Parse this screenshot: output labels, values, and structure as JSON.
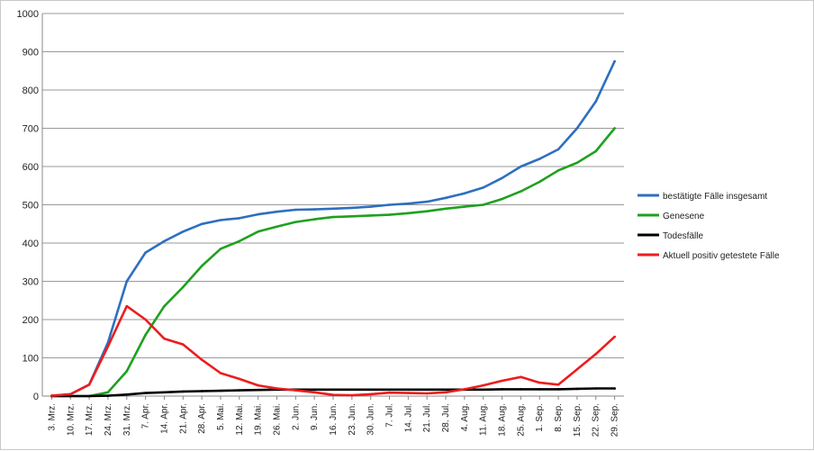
{
  "chart_data": {
    "type": "line",
    "title": "",
    "xlabel": "",
    "ylabel": "",
    "ylim": [
      0,
      1000
    ],
    "yticks": [
      0,
      100,
      200,
      300,
      400,
      500,
      600,
      700,
      800,
      900,
      1000
    ],
    "grid": "horizontal",
    "legend_position": "right",
    "x_tick_labels": [
      "3. Mrz.",
      "10. Mrz.",
      "17. Mrz.",
      "24. Mrz.",
      "31. Mrz.",
      "7. Apr.",
      "14. Apr.",
      "21. Apr.",
      "28. Apr.",
      "5. Mai.",
      "12. Mai.",
      "19. Mai.",
      "26. Mai.",
      "2. Jun.",
      "9. Jun.",
      "16. Jun.",
      "23. Jun.",
      "30. Jun.",
      "7. Jul.",
      "14. Jul.",
      "21. Jul.",
      "28. Jul.",
      "4. Aug.",
      "11. Aug.",
      "18. Aug.",
      "25. Aug.",
      "1. Sep.",
      "8. Sep.",
      "15. Sep.",
      "22. Sep.",
      "29. Sep."
    ],
    "series": [
      {
        "name": "bestätigte Fälle insgesamt",
        "color": "#2e6fc0",
        "points": [
          [
            "3. Mrz.",
            1
          ],
          [
            "10. Mrz.",
            5
          ],
          [
            "17. Mrz.",
            30
          ],
          [
            "24. Mrz.",
            140
          ],
          [
            "31. Mrz.",
            300
          ],
          [
            "7. Apr.",
            375
          ],
          [
            "14. Apr.",
            405
          ],
          [
            "21. Apr.",
            430
          ],
          [
            "28. Apr.",
            450
          ],
          [
            "5. Mai.",
            460
          ],
          [
            "12. Mai.",
            465
          ],
          [
            "19. Mai.",
            475
          ],
          [
            "26. Mai.",
            482
          ],
          [
            "2. Jun.",
            487
          ],
          [
            "9. Jun.",
            488
          ],
          [
            "16. Jun.",
            490
          ],
          [
            "23. Jun.",
            492
          ],
          [
            "30. Jun.",
            495
          ],
          [
            "7. Jul.",
            500
          ],
          [
            "14. Jul.",
            503
          ],
          [
            "21. Jul.",
            508
          ],
          [
            "28. Jul.",
            518
          ],
          [
            "4. Aug.",
            530
          ],
          [
            "11. Aug.",
            545
          ],
          [
            "18. Aug.",
            570
          ],
          [
            "25. Aug.",
            600
          ],
          [
            "1. Sep.",
            620
          ],
          [
            "8. Sep.",
            645
          ],
          [
            "15. Sep.",
            700
          ],
          [
            "22. Sep.",
            770
          ],
          [
            "29. Sep.",
            875
          ]
        ]
      },
      {
        "name": "Genesene",
        "color": "#1ea11e",
        "points": [
          [
            "3. Mrz.",
            0
          ],
          [
            "10. Mrz.",
            0
          ],
          [
            "17. Mrz.",
            0
          ],
          [
            "24. Mrz.",
            10
          ],
          [
            "31. Mrz.",
            65
          ],
          [
            "7. Apr.",
            160
          ],
          [
            "14. Apr.",
            235
          ],
          [
            "21. Apr.",
            285
          ],
          [
            "28. Apr.",
            340
          ],
          [
            "5. Mai.",
            385
          ],
          [
            "12. Mai.",
            405
          ],
          [
            "19. Mai.",
            430
          ],
          [
            "26. Mai.",
            443
          ],
          [
            "2. Jun.",
            455
          ],
          [
            "9. Jun.",
            462
          ],
          [
            "16. Jun.",
            468
          ],
          [
            "23. Jun.",
            470
          ],
          [
            "30. Jun.",
            472
          ],
          [
            "7. Jul.",
            474
          ],
          [
            "14. Jul.",
            478
          ],
          [
            "21. Jul.",
            483
          ],
          [
            "28. Jul.",
            490
          ],
          [
            "4. Aug.",
            495
          ],
          [
            "11. Aug.",
            500
          ],
          [
            "18. Aug.",
            515
          ],
          [
            "25. Aug.",
            535
          ],
          [
            "1. Sep.",
            560
          ],
          [
            "8. Sep.",
            590
          ],
          [
            "15. Sep.",
            610
          ],
          [
            "22. Sep.",
            640
          ],
          [
            "29. Sep.",
            700
          ]
        ]
      },
      {
        "name": "Todesfälle",
        "color": "#000000",
        "points": [
          [
            "3. Mrz.",
            0
          ],
          [
            "10. Mrz.",
            0
          ],
          [
            "17. Mrz.",
            0
          ],
          [
            "24. Mrz.",
            1
          ],
          [
            "31. Mrz.",
            4
          ],
          [
            "7. Apr.",
            8
          ],
          [
            "14. Apr.",
            10
          ],
          [
            "21. Apr.",
            12
          ],
          [
            "28. Apr.",
            13
          ],
          [
            "5. Mai.",
            14
          ],
          [
            "12. Mai.",
            15
          ],
          [
            "19. Mai.",
            16
          ],
          [
            "26. Mai.",
            17
          ],
          [
            "2. Jun.",
            17
          ],
          [
            "9. Jun.",
            17
          ],
          [
            "16. Jun.",
            17
          ],
          [
            "23. Jun.",
            17
          ],
          [
            "30. Jun.",
            17
          ],
          [
            "7. Jul.",
            17
          ],
          [
            "14. Jul.",
            17
          ],
          [
            "21. Jul.",
            17
          ],
          [
            "28. Jul.",
            17
          ],
          [
            "4. Aug.",
            17
          ],
          [
            "11. Aug.",
            17
          ],
          [
            "18. Aug.",
            18
          ],
          [
            "25. Aug.",
            18
          ],
          [
            "1. Sep.",
            18
          ],
          [
            "8. Sep.",
            18
          ],
          [
            "15. Sep.",
            19
          ],
          [
            "22. Sep.",
            20
          ],
          [
            "29. Sep.",
            20
          ]
        ]
      },
      {
        "name": "Aktuell positiv getestete Fälle",
        "color": "#ee1c1c",
        "points": [
          [
            "3. Mrz.",
            1
          ],
          [
            "10. Mrz.",
            5
          ],
          [
            "17. Mrz.",
            30
          ],
          [
            "24. Mrz.",
            130
          ],
          [
            "31. Mrz.",
            235
          ],
          [
            "7. Apr.",
            200
          ],
          [
            "14. Apr.",
            150
          ],
          [
            "21. Apr.",
            135
          ],
          [
            "28. Apr.",
            95
          ],
          [
            "5. Mai.",
            60
          ],
          [
            "12. Mai.",
            45
          ],
          [
            "19. Mai.",
            28
          ],
          [
            "26. Mai.",
            20
          ],
          [
            "2. Jun.",
            15
          ],
          [
            "9. Jun.",
            10
          ],
          [
            "16. Jun.",
            3
          ],
          [
            "23. Jun.",
            2
          ],
          [
            "30. Jun.",
            5
          ],
          [
            "7. Jul.",
            9
          ],
          [
            "14. Jul.",
            8
          ],
          [
            "21. Jul.",
            7
          ],
          [
            "28. Jul.",
            10
          ],
          [
            "4. Aug.",
            18
          ],
          [
            "11. Aug.",
            28
          ],
          [
            "18. Aug.",
            40
          ],
          [
            "25. Aug.",
            50
          ],
          [
            "1. Sep.",
            35
          ],
          [
            "8. Sep.",
            30
          ],
          [
            "15. Sep.",
            70
          ],
          [
            "22. Sep.",
            110
          ],
          [
            "29. Sep.",
            155
          ]
        ]
      }
    ]
  }
}
